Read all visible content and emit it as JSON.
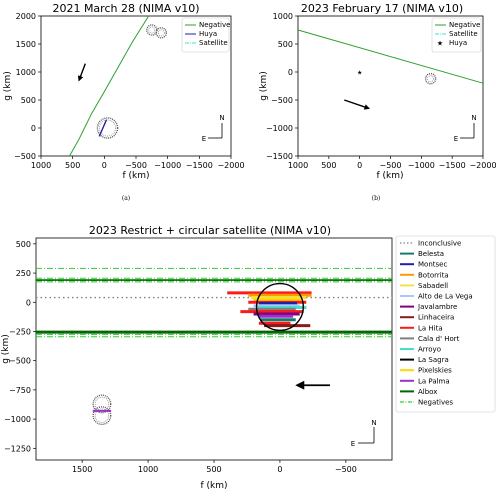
{
  "chart_data": [
    {
      "id": "a",
      "type": "line",
      "title": "2021 March 28 (NIMA v10)",
      "xlabel": "f (km)",
      "ylabel": "g (km)",
      "xlim": [
        1000,
        -2000
      ],
      "ylim": [
        -500,
        2000
      ],
      "xticks": [
        1000,
        500,
        0,
        -500,
        -1000,
        -1500,
        -2000
      ],
      "xticklabels": [
        "1000",
        "500",
        "0",
        "−500",
        "−1000",
        "−1500",
        "−2000"
      ],
      "yticks": [
        2000,
        1500,
        1000,
        500,
        0,
        -500
      ],
      "yticklabels": [
        "2000",
        "1500",
        "1000",
        "500",
        "0",
        "−500"
      ],
      "legend": {
        "placement": "top-right",
        "entries": [
          "Negative",
          "Huya",
          "Satellite"
        ]
      },
      "series": [
        {
          "name": "Negative",
          "color": "#2ca02c",
          "points": [
            [
              -700,
              2000
            ],
            [
              -450,
              1550
            ],
            [
              -200,
              1050
            ],
            [
              0,
              650
            ],
            [
              200,
              260
            ],
            [
              400,
              -200
            ],
            [
              550,
              -500
            ]
          ]
        },
        {
          "name": "Huya",
          "color": "#1f1fa8",
          "points": [
            [
              -35,
              150
            ],
            [
              80,
              -150
            ]
          ]
        }
      ],
      "satellite_circles": [
        {
          "f": -750,
          "g": 1750,
          "r": 90
        },
        {
          "f": -900,
          "g": 1700,
          "r": 90
        }
      ],
      "huya_circle": {
        "f": -50,
        "g": 0,
        "r": 180
      },
      "arrow": {
        "from": [
          300,
          1150
        ],
        "to": [
          400,
          850
        ]
      },
      "compass": {
        "north": "N",
        "east": "E"
      },
      "caption": "(a)"
    },
    {
      "id": "b",
      "type": "line",
      "title": "2023 February 17 (NIMA v10)",
      "xlabel": "f (km)",
      "ylabel": "g (km)",
      "xlim": [
        1000,
        -2000
      ],
      "ylim": [
        -1500,
        1000
      ],
      "xticks": [
        1000,
        500,
        0,
        -500,
        -1000,
        -1500,
        -2000
      ],
      "xticklabels": [
        "1000",
        "500",
        "0",
        "−500",
        "−1000",
        "−1500",
        "−2000"
      ],
      "yticks": [
        1000,
        500,
        0,
        -500,
        -1000,
        -1500
      ],
      "yticklabels": [
        "1000",
        "500",
        "0",
        "−500",
        "−1000",
        "−1500"
      ],
      "legend": {
        "placement": "top-right",
        "entries": [
          "Negative",
          "Satellite",
          "Huya"
        ]
      },
      "series": [
        {
          "name": "Negative",
          "color": "#2ca02c",
          "points": [
            [
              1000,
              750
            ],
            [
              -2000,
              -200
            ]
          ]
        }
      ],
      "huya_point": {
        "f": 0,
        "g": 0
      },
      "satellite_circle": {
        "f": -1150,
        "g": -120,
        "r": 90
      },
      "arrow": {
        "from": [
          250,
          -500
        ],
        "to": [
          -150,
          -650
        ]
      },
      "compass": {
        "north": "N",
        "east": "E"
      },
      "caption": "(b)"
    },
    {
      "id": "c",
      "type": "line",
      "title": "2023 Restrict + circular satellite (NIMA v10)",
      "xlabel": "f (km)",
      "ylabel": "g (km)",
      "xlim": [
        1850,
        -850
      ],
      "ylim": [
        -1350,
        550
      ],
      "xticks": [
        1500,
        1000,
        500,
        0,
        -500
      ],
      "xticklabels": [
        "1500",
        "1000",
        "500",
        "0",
        "−500"
      ],
      "yticks": [
        500,
        250,
        0,
        -250,
        -500,
        -750,
        -1000,
        -1250
      ],
      "yticklabels": [
        "500",
        "250",
        "0",
        "−250",
        "−500",
        "−750",
        "−1000",
        "−1250"
      ],
      "legend": {
        "placement": "outside-right",
        "entries": [
          {
            "label": "Inconclusive",
            "color": "#808080",
            "style": "dotted"
          },
          {
            "label": "Belesta",
            "color": "#1a7a6e",
            "style": "solid"
          },
          {
            "label": "Montsec",
            "color": "#1f1fa8",
            "style": "solid"
          },
          {
            "label": "Botorrita",
            "color": "#ff9900",
            "style": "solid"
          },
          {
            "label": "Sabadell",
            "color": "#f0e442",
            "style": "solid"
          },
          {
            "label": "Alto de La Vega",
            "color": "#a6c8ff",
            "style": "solid"
          },
          {
            "label": "Javalambre",
            "color": "#800080",
            "style": "solid"
          },
          {
            "label": "Linhaceira",
            "color": "#8b1a1a",
            "style": "solid"
          },
          {
            "label": "La Hita",
            "color": "#ff1a1a",
            "style": "solid"
          },
          {
            "label": "Cala d' Hort",
            "color": "#808080",
            "style": "solid"
          },
          {
            "label": "Arroyo",
            "color": "#40e0d0",
            "style": "solid"
          },
          {
            "label": "La Sagra",
            "color": "#000000",
            "style": "solid"
          },
          {
            "label": "Pixelskies",
            "color": "#ffd700",
            "style": "solid"
          },
          {
            "label": "La Palma",
            "color": "#9932cc",
            "style": "solid"
          },
          {
            "label": "Albox",
            "color": "#006400",
            "style": "solid"
          },
          {
            "label": "Negatives",
            "color": "#32cd32",
            "style": "dashdot"
          }
        ]
      },
      "inconclusive_g": 40,
      "negative_lines_g": [
        290,
        205,
        185,
        175,
        -255,
        -275,
        -295
      ],
      "dark_lines_g": [
        190,
        -250,
        -262
      ],
      "chords": [
        {
          "g": 80,
          "f1": 400,
          "f2": -240,
          "color": "#ff1a1a"
        },
        {
          "g": 60,
          "f1": 240,
          "f2": -240,
          "color": "#ff9900"
        },
        {
          "g": 40,
          "f1": 220,
          "f2": -200,
          "color": "#f0e442"
        },
        {
          "g": 20,
          "f1": 200,
          "f2": -160,
          "color": "#ffd700"
        },
        {
          "g": 0,
          "f1": 240,
          "f2": -200,
          "color": "#ff1a1a"
        },
        {
          "g": -10,
          "f1": 160,
          "f2": -130,
          "color": "#1f1fa8"
        },
        {
          "g": -30,
          "f1": 200,
          "f2": -150,
          "color": "#a6c8ff"
        },
        {
          "g": -45,
          "f1": 170,
          "f2": -200,
          "color": "#40e0d0"
        },
        {
          "g": -60,
          "f1": 240,
          "f2": -120,
          "color": "#808080"
        },
        {
          "g": -80,
          "f1": 300,
          "f2": -180,
          "color": "#ff1a1a"
        },
        {
          "g": -100,
          "f1": 200,
          "f2": -150,
          "color": "#800080"
        },
        {
          "g": -120,
          "f1": 160,
          "f2": -100,
          "color": "#9932cc"
        },
        {
          "g": -150,
          "f1": 150,
          "f2": -120,
          "color": "#1a7a6e"
        },
        {
          "g": -180,
          "f1": 160,
          "f2": -80,
          "color": "#ff1a1a"
        },
        {
          "g": -200,
          "f1": 120,
          "f2": -230,
          "color": "#8b1a1a"
        }
      ],
      "huya_circle": {
        "f": 0,
        "g": -40,
        "r": 200
      },
      "satellite_circles": [
        {
          "f": 1350,
          "g": -870,
          "r": 75
        },
        {
          "f": 1350,
          "g": -970,
          "r": 75
        }
      ],
      "satellite_chord": {
        "g": -930,
        "f1": 1420,
        "f2": 1280
      },
      "arrow": {
        "from": [
          -380,
          -710
        ],
        "to": [
          -130,
          -710
        ]
      },
      "compass": {
        "north": "N",
        "east": "E"
      }
    }
  ]
}
